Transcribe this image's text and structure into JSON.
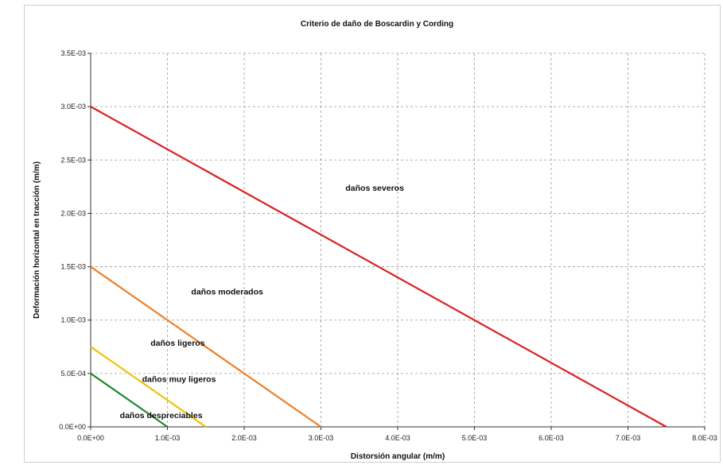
{
  "chart_data": {
    "type": "line",
    "title": "Criterio de daño de Boscardin y Cording",
    "xlabel": "Distorsión angular (m/m)",
    "ylabel": "Deformación horizontal en tracción (m/m)",
    "xlim": [
      0,
      0.008
    ],
    "ylim": [
      0,
      0.0035
    ],
    "x_ticks": [
      0,
      0.001,
      0.002,
      0.003,
      0.004,
      0.005,
      0.006,
      0.007,
      0.008
    ],
    "x_tick_labels": [
      "0.0E+00",
      "1.0E-03",
      "2.0E-03",
      "3.0E-03",
      "4.0E-03",
      "5.0E-03",
      "6.0E-03",
      "7.0E-03",
      "8.0E-03"
    ],
    "y_ticks": [
      0,
      0.0005,
      0.001,
      0.0015,
      0.002,
      0.0025,
      0.003,
      0.0035
    ],
    "y_tick_labels": [
      "0.0E+00",
      "5.0E-04",
      "1.0E-03",
      "1.5E-03",
      "2.0E-03",
      "2.5E-03",
      "3.0E-03",
      "3.5E-03"
    ],
    "grid": true,
    "series": [
      {
        "color": "#1f8a2a",
        "x": [
          0,
          0.001
        ],
        "y": [
          0.0005,
          0
        ]
      },
      {
        "color": "#f2c200",
        "x": [
          0,
          0.0015
        ],
        "y": [
          0.00075,
          0
        ]
      },
      {
        "color": "#f07f22",
        "x": [
          0,
          0.003
        ],
        "y": [
          0.0015,
          0
        ]
      },
      {
        "color": "#dd2020",
        "x": [
          0,
          0.0075
        ],
        "y": [
          0.003,
          0
        ]
      }
    ],
    "annotations": [
      {
        "text": "daños despreciables",
        "x": 0.00038,
        "y": 0.00011
      },
      {
        "text": "daños muy ligeros",
        "x": 0.00067,
        "y": 0.00045
      },
      {
        "text": "daños ligeros",
        "x": 0.00078,
        "y": 0.00079
      },
      {
        "text": "daños moderados",
        "x": 0.00131,
        "y": 0.00127
      },
      {
        "text": "daños severos",
        "x": 0.00332,
        "y": 0.00224
      }
    ]
  }
}
